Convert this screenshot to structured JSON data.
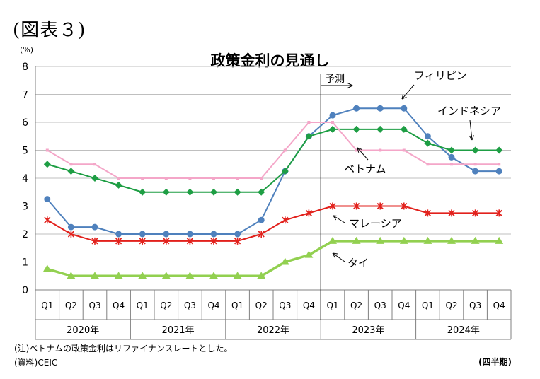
{
  "figure_label": "(図表３)",
  "footnotes": {
    "note": "(注)ベトナムの政策金利はリファイナンスレートとした。",
    "source": "(資料)CEIC",
    "frequency": "(四半期)"
  },
  "chart_data": {
    "type": "line",
    "title": "政策金利の見通し",
    "unit": "(%)",
    "ylim": [
      0,
      8
    ],
    "yticks": [
      "0",
      "1",
      "2",
      "3",
      "4",
      "5",
      "6",
      "7",
      "8"
    ],
    "grid": true,
    "categories": [
      "Q1",
      "Q2",
      "Q3",
      "Q4",
      "Q1",
      "Q2",
      "Q3",
      "Q4",
      "Q1",
      "Q2",
      "Q3",
      "Q4",
      "Q1",
      "Q2",
      "Q3",
      "Q4",
      "Q1",
      "Q2",
      "Q3",
      "Q4"
    ],
    "year_groups": [
      {
        "label": "2020年",
        "span": 4
      },
      {
        "label": "2021年",
        "span": 4
      },
      {
        "label": "2022年",
        "span": 4
      },
      {
        "label": "2023年",
        "span": 4
      },
      {
        "label": "2024年",
        "span": 4
      }
    ],
    "forecast_label": "予測",
    "forecast_start_index": 12,
    "series": [
      {
        "name": "フィリピン",
        "color": "#4f81bd",
        "marker": "circle",
        "width": 2,
        "values": [
          3.25,
          2.25,
          2.25,
          2.0,
          2.0,
          2.0,
          2.0,
          2.0,
          2.0,
          2.5,
          4.25,
          5.5,
          6.25,
          6.5,
          6.5,
          6.5,
          5.5,
          4.75,
          4.25,
          4.25
        ]
      },
      {
        "name": "インドネシア",
        "color": "#1e9e44",
        "marker": "diamond",
        "width": 2,
        "values": [
          4.5,
          4.25,
          4.0,
          3.75,
          3.5,
          3.5,
          3.5,
          3.5,
          3.5,
          3.5,
          4.25,
          5.5,
          5.75,
          5.75,
          5.75,
          5.75,
          5.25,
          5.0,
          5.0,
          5.0
        ]
      },
      {
        "name": "ベトナム",
        "color": "#f4a6c8",
        "marker": "square",
        "width": 2,
        "values": [
          5.0,
          4.5,
          4.5,
          4.0,
          4.0,
          4.0,
          4.0,
          4.0,
          4.0,
          4.0,
          5.0,
          6.0,
          6.0,
          5.0,
          5.0,
          5.0,
          4.5,
          4.5,
          4.5,
          4.5
        ]
      },
      {
        "name": "マレーシア",
        "color": "#e2211c",
        "marker": "star",
        "width": 2,
        "values": [
          2.5,
          2.0,
          1.75,
          1.75,
          1.75,
          1.75,
          1.75,
          1.75,
          1.75,
          2.0,
          2.5,
          2.75,
          3.0,
          3.0,
          3.0,
          3.0,
          2.75,
          2.75,
          2.75,
          2.75
        ]
      },
      {
        "name": "タイ",
        "color": "#92d050",
        "marker": "triangle",
        "width": 3.5,
        "values": [
          0.75,
          0.5,
          0.5,
          0.5,
          0.5,
          0.5,
          0.5,
          0.5,
          0.5,
          0.5,
          1.0,
          1.25,
          1.75,
          1.75,
          1.75,
          1.75,
          1.75,
          1.75,
          1.75,
          1.75
        ]
      }
    ]
  }
}
